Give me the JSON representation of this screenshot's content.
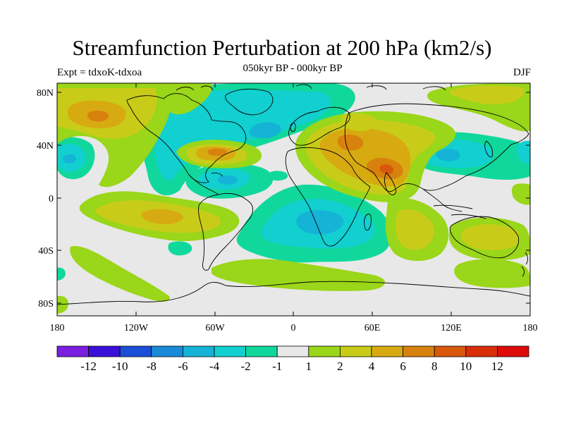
{
  "title": "Streamfunction Perturbation at 200 hPa (km2/s)",
  "subtitle": "050kyr BP - 000kyr BP",
  "left_label": "Expt = tdxoK-tdxoa",
  "right_label": "DJF",
  "map": {
    "projection": "cylindrical equidistant",
    "lon_range": [
      -180,
      180
    ],
    "lat_range": [
      -90,
      90
    ],
    "x_ticks": [
      "180",
      "120W",
      "60W",
      "0",
      "60E",
      "120E",
      "180"
    ],
    "y_ticks": [
      "80N",
      "40N",
      "0",
      "40S",
      "80S"
    ],
    "background_color": "#e8e8e8",
    "coastline_color": "#000000"
  },
  "colorbar": {
    "colors": [
      "#7a1fe0",
      "#3a10d8",
      "#1c4fd8",
      "#1a8ad8",
      "#15b3d6",
      "#12cfd0",
      "#10d89c",
      "#e8e8e8",
      "#9ad619",
      "#c8cc18",
      "#d8aa12",
      "#d8820e",
      "#d8580c",
      "#d82e0a",
      "#dc0a0a"
    ],
    "labels": [
      "-12",
      "-10",
      "-8",
      "-6",
      "-4",
      "-2",
      "-1",
      "1",
      "2",
      "4",
      "6",
      "8",
      "10",
      "12"
    ]
  }
}
